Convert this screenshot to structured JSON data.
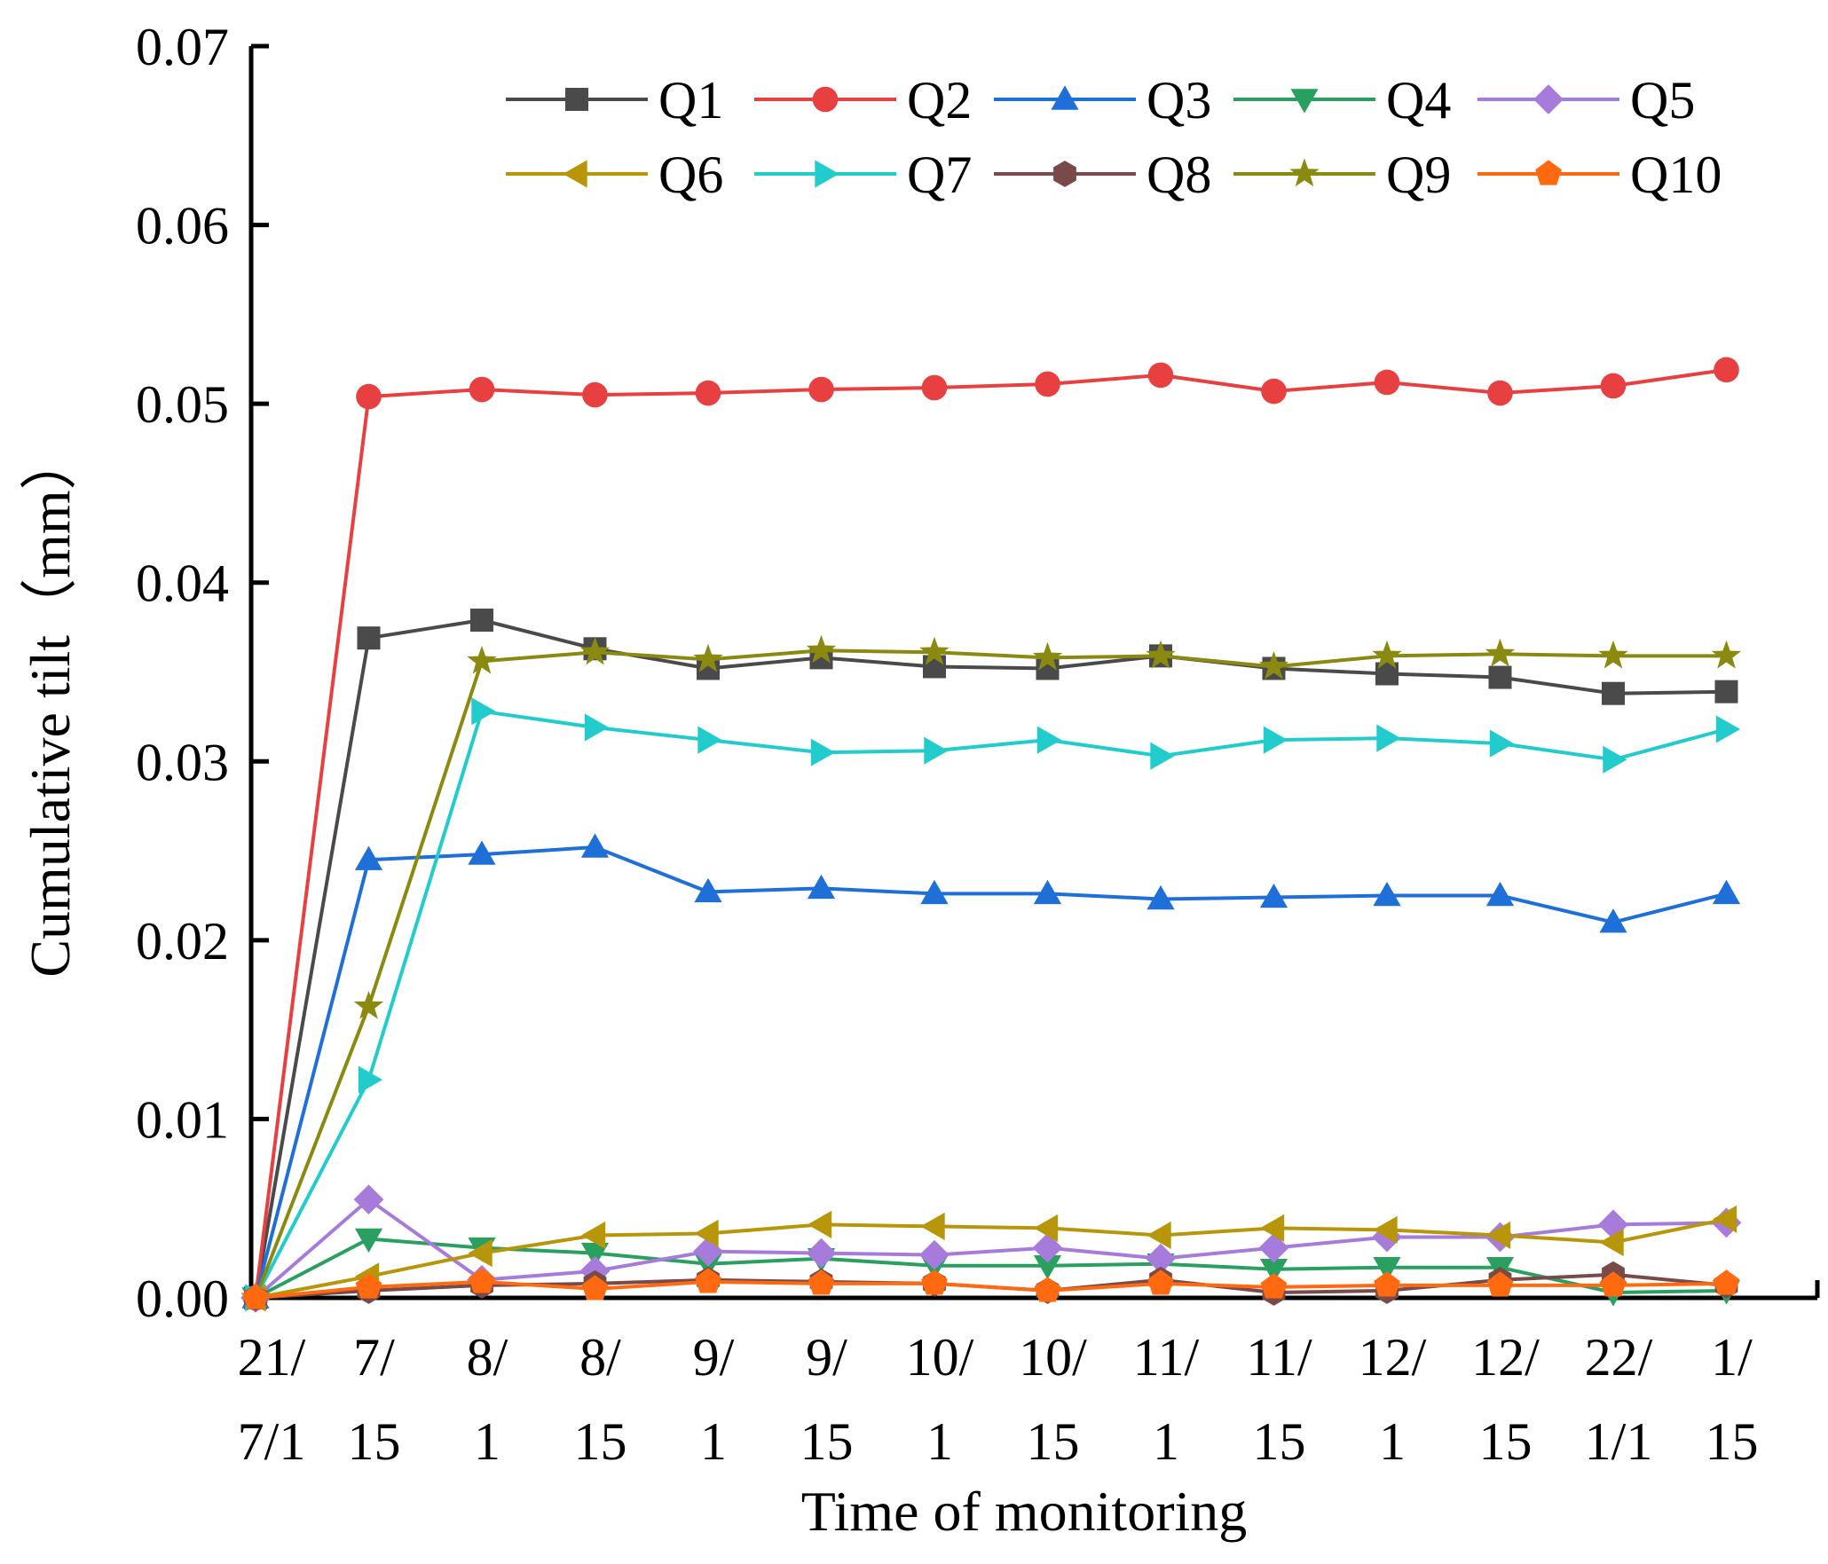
{
  "chart_data": {
    "type": "line",
    "title": "",
    "xlabel": "Time of monitoring",
    "ylabel": "Cumulative tilt（mm）",
    "ylim": [
      0,
      0.07
    ],
    "yticks": [
      "0.00",
      "0.01",
      "0.02",
      "0.03",
      "0.04",
      "0.05",
      "0.06",
      "0.07"
    ],
    "grid": false,
    "legend_position": "top",
    "categories": [
      [
        "21/",
        "7/1"
      ],
      [
        "7/",
        "15"
      ],
      [
        "8/",
        "1"
      ],
      [
        "8/",
        "15"
      ],
      [
        "9/",
        "1"
      ],
      [
        "9/",
        "15"
      ],
      [
        "10/",
        "1"
      ],
      [
        "10/",
        "15"
      ],
      [
        "11/",
        "1"
      ],
      [
        "11/",
        "15"
      ],
      [
        "12/",
        "1"
      ],
      [
        "12/",
        "15"
      ],
      [
        "22/",
        "1/1"
      ],
      [
        "1/",
        "15"
      ]
    ],
    "series": [
      {
        "name": "Q1",
        "color": "#4a4a4a",
        "marker": "square",
        "values": [
          0,
          0.0369,
          0.0379,
          0.0363,
          0.0352,
          0.0358,
          0.0353,
          0.0352,
          0.0359,
          0.0352,
          0.0349,
          0.0347,
          0.0338,
          0.0339
        ]
      },
      {
        "name": "Q2",
        "color": "#e84040",
        "marker": "circle",
        "values": [
          0,
          0.0504,
          0.0508,
          0.0505,
          0.0506,
          0.0508,
          0.0509,
          0.0511,
          0.0516,
          0.0507,
          0.0512,
          0.0506,
          0.051,
          0.0519
        ]
      },
      {
        "name": "Q3",
        "color": "#1f6fd8",
        "marker": "triangle-up",
        "values": [
          0,
          0.0245,
          0.0248,
          0.0252,
          0.0227,
          0.0229,
          0.0226,
          0.0226,
          0.0223,
          0.0224,
          0.0225,
          0.0225,
          0.021,
          0.0226
        ]
      },
      {
        "name": "Q4",
        "color": "#2aa060",
        "marker": "triangle-down",
        "values": [
          0,
          0.0033,
          0.0028,
          0.0025,
          0.0019,
          0.0022,
          0.0018,
          0.0018,
          0.0019,
          0.0016,
          0.0017,
          0.0017,
          0.0003,
          0.0004
        ]
      },
      {
        "name": "Q5",
        "color": "#a77bdc",
        "marker": "diamond",
        "values": [
          0,
          0.0055,
          0.001,
          0.0015,
          0.0026,
          0.0025,
          0.0024,
          0.0028,
          0.0022,
          0.0028,
          0.0034,
          0.0034,
          0.0041,
          0.0042
        ]
      },
      {
        "name": "Q6",
        "color": "#b8960a",
        "marker": "triangle-left",
        "values": [
          0,
          0.0012,
          0.0025,
          0.0035,
          0.0036,
          0.0041,
          0.004,
          0.0039,
          0.0035,
          0.0039,
          0.0038,
          0.0035,
          0.0031,
          0.0044
        ]
      },
      {
        "name": "Q7",
        "color": "#22cccc",
        "marker": "triangle-right",
        "values": [
          0,
          0.0122,
          0.0328,
          0.0319,
          0.0312,
          0.0305,
          0.0306,
          0.0312,
          0.0303,
          0.0312,
          0.0313,
          0.031,
          0.0301,
          0.0318
        ]
      },
      {
        "name": "Q8",
        "color": "#7a4a48",
        "marker": "hexagon",
        "values": [
          0,
          0.0004,
          0.0007,
          0.0008,
          0.001,
          0.0009,
          0.0008,
          0.0004,
          0.001,
          0.0003,
          0.0004,
          0.001,
          0.0013,
          0.0007
        ]
      },
      {
        "name": "Q9",
        "color": "#8a8a10",
        "marker": "star",
        "values": [
          0,
          0.0163,
          0.0356,
          0.0361,
          0.0357,
          0.0362,
          0.0361,
          0.0358,
          0.0359,
          0.0353,
          0.0359,
          0.036,
          0.0359,
          0.0359
        ]
      },
      {
        "name": "Q10",
        "color": "#ff6a10",
        "marker": "pentagon",
        "values": [
          0,
          0.0006,
          0.0009,
          0.0005,
          0.0009,
          0.0008,
          0.0008,
          0.0004,
          0.0008,
          0.0006,
          0.0007,
          0.0007,
          0.0007,
          0.0008
        ]
      }
    ]
  }
}
